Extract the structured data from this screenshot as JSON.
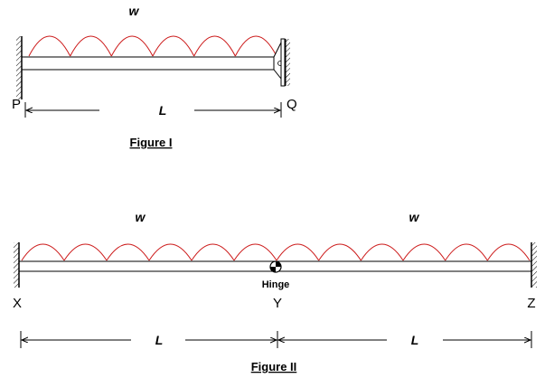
{
  "colors": {
    "load": "#cc1a1a",
    "line": "#000000",
    "background": "#ffffff"
  },
  "figure1": {
    "load_label": "w",
    "left_support": "P",
    "right_support": "Q",
    "span_label": "L",
    "caption": "Figure I",
    "left_support_type": "fixed-wall",
    "right_support_type": "guided-roller-wall"
  },
  "figure2": {
    "load_label_left": "w",
    "load_label_right": "w",
    "left_support": "X",
    "hinge_point": "Y",
    "right_support": "Z",
    "hinge_label": "Hinge",
    "span_label_left": "L",
    "span_label_right": "L",
    "caption": "Figure II",
    "left_support_type": "fixed-wall",
    "right_support_type": "fixed-wall"
  }
}
